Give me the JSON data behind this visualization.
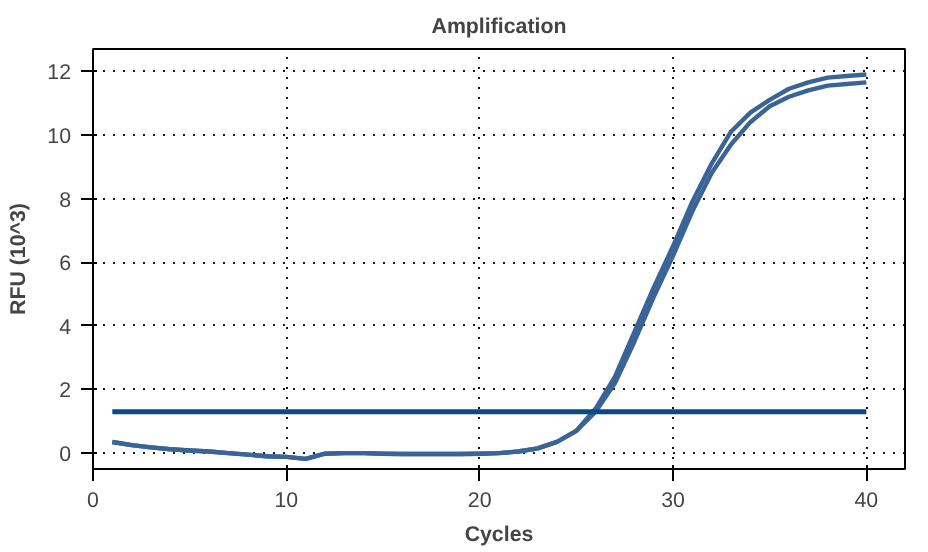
{
  "chart_data": {
    "type": "line",
    "title": "Amplification",
    "xlabel": "Cycles",
    "ylabel": "RFU (10^3)",
    "x": [
      1,
      2,
      3,
      4,
      5,
      6,
      7,
      8,
      9,
      10,
      11,
      12,
      13,
      14,
      15,
      16,
      17,
      18,
      19,
      20,
      21,
      22,
      23,
      24,
      25,
      26,
      27,
      28,
      29,
      30,
      31,
      32,
      33,
      34,
      35,
      36,
      37,
      38,
      39,
      40
    ],
    "series": [
      {
        "color": "#3a6496",
        "values": [
          0.35,
          0.25,
          0.18,
          0.12,
          0.08,
          0.05,
          0.0,
          -0.05,
          -0.1,
          -0.12,
          -0.18,
          -0.02,
          0.0,
          0.0,
          -0.02,
          -0.03,
          -0.03,
          -0.03,
          -0.03,
          -0.02,
          0.0,
          0.05,
          0.15,
          0.35,
          0.7,
          1.4,
          2.4,
          3.8,
          5.2,
          6.5,
          7.9,
          9.1,
          10.1,
          10.7,
          11.1,
          11.45,
          11.65,
          11.8,
          11.85,
          11.9
        ]
      },
      {
        "color": "#3a6496",
        "values": [
          0.35,
          0.25,
          0.18,
          0.12,
          0.08,
          0.05,
          0.0,
          -0.05,
          -0.1,
          -0.12,
          -0.18,
          -0.02,
          0.0,
          0.0,
          -0.02,
          -0.03,
          -0.03,
          -0.03,
          -0.03,
          -0.02,
          0.0,
          0.05,
          0.15,
          0.35,
          0.7,
          1.3,
          2.2,
          3.5,
          4.9,
          6.2,
          7.6,
          8.8,
          9.7,
          10.4,
          10.9,
          11.2,
          11.4,
          11.55,
          11.6,
          11.65
        ]
      }
    ],
    "ref_lines": [
      {
        "axis": "y",
        "value": 1.3,
        "color": "#0b4a80"
      }
    ],
    "xlim": [
      0,
      42
    ],
    "ylim": [
      -0.5,
      12.7
    ],
    "xticks": [
      0,
      10,
      20,
      30,
      40
    ],
    "yticks": [
      0,
      2,
      4,
      6,
      8,
      10,
      12
    ],
    "grid": true,
    "line_style": "solid",
    "marker": "none"
  }
}
